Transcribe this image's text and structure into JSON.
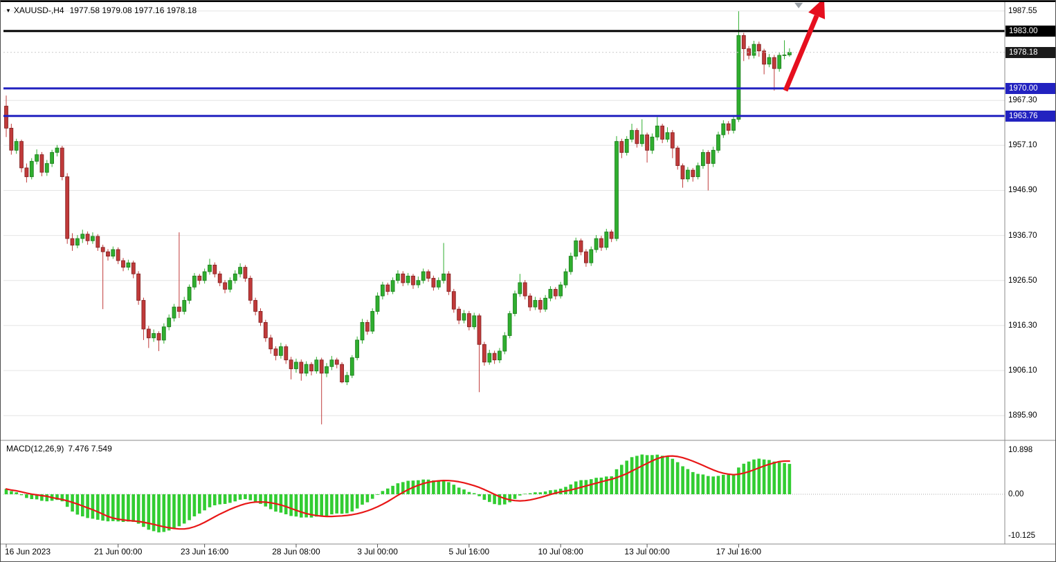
{
  "header": {
    "symbol": "XAUUSD-,H4",
    "ohlc_text": "1977.58 1979.08 1977.16 1978.18",
    "open": "1977.58",
    "high": "1979.08",
    "low": "1977.16",
    "close": "1978.18"
  },
  "chart_data": [
    {
      "id": "price",
      "type": "candlestick",
      "symbol": "XAUUSD-",
      "timeframe": "H4",
      "up_color": "#2fae2f",
      "down_color": "#c03a3a",
      "grid": true,
      "y_axis": {
        "range": [
          1890.6,
          1989.25
        ],
        "ticks": [
          {
            "value": 1987.55,
            "label": "1987.55"
          },
          {
            "value": 1967.3,
            "label": "1967.30"
          },
          {
            "value": 1957.1,
            "label": "1957.10"
          },
          {
            "value": 1946.9,
            "label": "1946.90"
          },
          {
            "value": 1936.7,
            "label": "1936.70"
          },
          {
            "value": 1926.5,
            "label": "1926.50"
          },
          {
            "value": 1916.3,
            "label": "1916.30"
          },
          {
            "value": 1906.1,
            "label": "1906.10"
          },
          {
            "value": 1895.9,
            "label": "1895.90"
          }
        ]
      },
      "x_labels": [
        {
          "label": "16 Jun 2023",
          "index": 0
        },
        {
          "label": "21 Jun 00:00",
          "index": 22
        },
        {
          "label": "23 Jun 16:00",
          "index": 39
        },
        {
          "label": "28 Jun 08:00",
          "index": 57
        },
        {
          "label": "3 Jul 00:00",
          "index": 73
        },
        {
          "label": "5 Jul 16:00",
          "index": 91
        },
        {
          "label": "10 Jul 08:00",
          "index": 109
        },
        {
          "label": "13 Jul 00:00",
          "index": 126
        },
        {
          "label": "17 Jul 16:00",
          "index": 144
        }
      ],
      "price_lines": [
        {
          "value": 1983.0,
          "label": "1983.00",
          "color": "#000000",
          "width": 3
        },
        {
          "value": 1970.0,
          "label": "1970.00",
          "color": "#2222c0",
          "width": 3
        },
        {
          "value": 1963.76,
          "label": "1963.76",
          "color": "#2222c0",
          "width": 3
        }
      ],
      "current_price": {
        "value": 1978.18,
        "label": "1978.18",
        "badge_color": "#1b1b1b"
      },
      "shift_marker": {
        "index": 155.8
      },
      "annotations": [
        {
          "type": "arrow",
          "color": "#e60f1e",
          "from": {
            "index": 153.2,
            "price": 1969.5
          },
          "to": {
            "index": 160.8,
            "price": 1990.5
          }
        }
      ],
      "candles": [
        [
          1966.0,
          1968.4,
          1959.0,
          1961.0
        ],
        [
          1961.0,
          1962.0,
          1955.0,
          1956.0
        ],
        [
          1956.0,
          1958.6,
          1955.2,
          1958.0
        ],
        [
          1958.0,
          1958.4,
          1951.0,
          1952.0
        ],
        [
          1952.0,
          1953.0,
          1948.7,
          1950.0
        ],
        [
          1950.0,
          1954.2,
          1949.4,
          1953.5
        ],
        [
          1953.5,
          1956.2,
          1952.8,
          1955.0
        ],
        [
          1955.0,
          1955.6,
          1950.1,
          1951.0
        ],
        [
          1951.0,
          1953.8,
          1950.2,
          1953.0
        ],
        [
          1953.0,
          1956.1,
          1952.2,
          1955.5
        ],
        [
          1955.5,
          1957.2,
          1954.6,
          1956.5
        ],
        [
          1956.5,
          1957.0,
          1949.2,
          1950.0
        ],
        [
          1950.0,
          1950.8,
          1934.8,
          1936.0
        ],
        [
          1936.0,
          1937.2,
          1933.2,
          1934.5
        ],
        [
          1934.5,
          1936.8,
          1933.8,
          1936.0
        ],
        [
          1936.0,
          1938.0,
          1935.0,
          1937.0
        ],
        [
          1937.0,
          1937.6,
          1934.6,
          1935.5
        ],
        [
          1935.5,
          1937.4,
          1934.8,
          1936.5
        ],
        [
          1936.5,
          1937.0,
          1933.2,
          1934.0
        ],
        [
          1934.0,
          1934.6,
          1920.0,
          1933.0
        ],
        [
          1933.0,
          1933.6,
          1931.0,
          1932.0
        ],
        [
          1932.0,
          1934.2,
          1931.4,
          1933.5
        ],
        [
          1933.5,
          1934.0,
          1930.2,
          1931.0
        ],
        [
          1931.0,
          1931.6,
          1928.6,
          1929.5
        ],
        [
          1929.5,
          1931.2,
          1928.8,
          1930.5
        ],
        [
          1930.5,
          1931.0,
          1927.0,
          1928.0
        ],
        [
          1928.0,
          1928.6,
          1921.0,
          1922.0
        ],
        [
          1922.0,
          1922.6,
          1913.0,
          1915.5
        ],
        [
          1915.5,
          1916.2,
          1911.2,
          1913.5
        ],
        [
          1913.5,
          1915.4,
          1912.6,
          1914.5
        ],
        [
          1914.5,
          1915.0,
          1910.5,
          1913.0
        ],
        [
          1913.0,
          1916.8,
          1912.2,
          1916.0
        ],
        [
          1916.0,
          1918.8,
          1915.2,
          1918.0
        ],
        [
          1918.0,
          1921.2,
          1917.2,
          1920.5
        ],
        [
          1920.5,
          1937.4,
          1918.0,
          1919.5
        ],
        [
          1919.5,
          1922.8,
          1918.8,
          1922.0
        ],
        [
          1922.0,
          1925.6,
          1921.2,
          1925.0
        ],
        [
          1925.0,
          1928.2,
          1924.4,
          1927.5
        ],
        [
          1927.5,
          1928.0,
          1925.6,
          1926.5
        ],
        [
          1926.5,
          1929.2,
          1925.8,
          1928.5
        ],
        [
          1928.5,
          1931.4,
          1927.8,
          1930.0
        ],
        [
          1930.0,
          1930.6,
          1927.2,
          1928.0
        ],
        [
          1928.0,
          1928.6,
          1925.2,
          1926.0
        ],
        [
          1926.0,
          1926.6,
          1923.6,
          1924.5
        ],
        [
          1924.5,
          1927.2,
          1923.8,
          1926.5
        ],
        [
          1926.5,
          1928.8,
          1925.8,
          1928.0
        ],
        [
          1928.0,
          1930.4,
          1927.2,
          1929.5
        ],
        [
          1929.5,
          1930.0,
          1926.2,
          1927.0
        ],
        [
          1927.0,
          1927.6,
          1921.2,
          1922.0
        ],
        [
          1922.0,
          1922.6,
          1918.6,
          1919.5
        ],
        [
          1919.5,
          1920.2,
          1916.2,
          1917.0
        ],
        [
          1917.0,
          1917.6,
          1912.6,
          1913.5
        ],
        [
          1913.5,
          1914.2,
          1909.9,
          1911.0
        ],
        [
          1911.0,
          1911.6,
          1908.4,
          1909.5
        ],
        [
          1909.5,
          1912.4,
          1908.8,
          1911.5
        ],
        [
          1911.5,
          1912.0,
          1907.6,
          1908.5
        ],
        [
          1908.5,
          1909.2,
          1904.1,
          1906.5
        ],
        [
          1906.5,
          1908.8,
          1905.6,
          1908.0
        ],
        [
          1908.0,
          1908.6,
          1903.8,
          1905.5
        ],
        [
          1905.5,
          1908.2,
          1904.8,
          1907.5
        ],
        [
          1907.5,
          1908.0,
          1905.0,
          1906.0
        ],
        [
          1906.0,
          1909.2,
          1905.4,
          1908.5
        ],
        [
          1908.5,
          1909.0,
          1893.9,
          1905.5
        ],
        [
          1905.5,
          1907.8,
          1904.6,
          1907.0
        ],
        [
          1907.0,
          1909.4,
          1906.2,
          1908.5
        ],
        [
          1908.5,
          1909.0,
          1906.6,
          1907.5
        ],
        [
          1907.5,
          1908.0,
          1903.2,
          1903.5
        ],
        [
          1903.5,
          1905.8,
          1902.8,
          1905.0
        ],
        [
          1905.0,
          1909.6,
          1904.4,
          1909.0
        ],
        [
          1909.0,
          1913.8,
          1908.4,
          1913.0
        ],
        [
          1913.0,
          1917.8,
          1912.2,
          1917.0
        ],
        [
          1917.0,
          1917.6,
          1914.2,
          1915.0
        ],
        [
          1915.0,
          1920.2,
          1914.4,
          1919.5
        ],
        [
          1919.5,
          1923.8,
          1918.8,
          1923.0
        ],
        [
          1923.0,
          1926.2,
          1922.2,
          1925.5
        ],
        [
          1925.5,
          1926.0,
          1923.2,
          1924.0
        ],
        [
          1924.0,
          1927.2,
          1923.4,
          1926.5
        ],
        [
          1926.5,
          1928.8,
          1925.8,
          1928.0
        ],
        [
          1928.0,
          1928.6,
          1925.2,
          1926.0
        ],
        [
          1926.0,
          1928.2,
          1925.4,
          1927.5
        ],
        [
          1927.5,
          1928.0,
          1924.6,
          1925.5
        ],
        [
          1925.5,
          1927.4,
          1924.8,
          1926.5
        ],
        [
          1926.5,
          1929.2,
          1925.8,
          1928.5
        ],
        [
          1928.5,
          1929.0,
          1926.2,
          1927.0
        ],
        [
          1927.0,
          1927.6,
          1924.2,
          1925.0
        ],
        [
          1925.0,
          1927.2,
          1924.4,
          1926.5
        ],
        [
          1926.5,
          1935.0,
          1925.8,
          1928.0
        ],
        [
          1928.0,
          1928.6,
          1923.2,
          1924.0
        ],
        [
          1924.0,
          1924.6,
          1919.2,
          1920.0
        ],
        [
          1920.0,
          1920.6,
          1916.6,
          1917.5
        ],
        [
          1917.5,
          1919.8,
          1916.8,
          1919.0
        ],
        [
          1919.0,
          1919.6,
          1915.2,
          1916.0
        ],
        [
          1916.0,
          1919.2,
          1915.4,
          1918.5
        ],
        [
          1918.5,
          1919.0,
          1901.2,
          1912.0
        ],
        [
          1912.0,
          1912.6,
          1907.2,
          1908.0
        ],
        [
          1908.0,
          1910.8,
          1907.4,
          1910.0
        ],
        [
          1910.0,
          1910.6,
          1907.6,
          1908.5
        ],
        [
          1908.5,
          1911.2,
          1907.8,
          1910.5
        ],
        [
          1910.5,
          1914.8,
          1909.8,
          1914.0
        ],
        [
          1914.0,
          1919.6,
          1913.4,
          1919.0
        ],
        [
          1919.0,
          1924.2,
          1918.4,
          1923.5
        ],
        [
          1923.5,
          1928.0,
          1922.8,
          1926.0
        ],
        [
          1926.0,
          1926.6,
          1922.2,
          1923.0
        ],
        [
          1923.0,
          1923.6,
          1919.6,
          1920.5
        ],
        [
          1920.5,
          1922.8,
          1919.8,
          1922.0
        ],
        [
          1922.0,
          1922.6,
          1919.2,
          1920.0
        ],
        [
          1920.0,
          1923.2,
          1919.4,
          1922.5
        ],
        [
          1922.5,
          1925.2,
          1921.8,
          1924.5
        ],
        [
          1924.5,
          1925.0,
          1922.2,
          1923.0
        ],
        [
          1923.0,
          1926.2,
          1922.4,
          1925.5
        ],
        [
          1925.5,
          1929.2,
          1924.8,
          1928.5
        ],
        [
          1928.5,
          1932.8,
          1927.8,
          1932.0
        ],
        [
          1932.0,
          1936.2,
          1931.2,
          1935.5
        ],
        [
          1935.5,
          1936.0,
          1932.2,
          1933.0
        ],
        [
          1933.0,
          1933.6,
          1929.6,
          1930.5
        ],
        [
          1930.5,
          1934.2,
          1929.8,
          1933.5
        ],
        [
          1933.5,
          1936.8,
          1932.8,
          1936.0
        ],
        [
          1936.0,
          1936.6,
          1933.2,
          1934.0
        ],
        [
          1934.0,
          1938.2,
          1933.4,
          1937.5
        ],
        [
          1937.5,
          1938.0,
          1935.2,
          1936.0
        ],
        [
          1936.0,
          1959.2,
          1935.4,
          1958.0
        ],
        [
          1958.0,
          1958.6,
          1954.2,
          1955.5
        ],
        [
          1955.5,
          1959.2,
          1954.8,
          1958.5
        ],
        [
          1958.5,
          1962.0,
          1957.8,
          1960.5
        ],
        [
          1960.5,
          1961.0,
          1956.6,
          1957.5
        ],
        [
          1957.5,
          1963.0,
          1956.8,
          1959.5
        ],
        [
          1959.5,
          1960.0,
          1953.2,
          1956.0
        ],
        [
          1956.0,
          1959.8,
          1955.2,
          1959.0
        ],
        [
          1959.0,
          1963.5,
          1958.2,
          1961.5
        ],
        [
          1961.5,
          1962.0,
          1957.6,
          1958.5
        ],
        [
          1958.5,
          1961.2,
          1957.8,
          1960.0
        ],
        [
          1960.0,
          1960.6,
          1954.2,
          1956.5
        ],
        [
          1956.5,
          1957.0,
          1951.6,
          1952.5
        ],
        [
          1952.5,
          1953.0,
          1947.5,
          1949.5
        ],
        [
          1949.5,
          1952.2,
          1948.8,
          1951.5
        ],
        [
          1951.5,
          1952.0,
          1948.9,
          1950.0
        ],
        [
          1950.0,
          1953.2,
          1949.4,
          1952.5
        ],
        [
          1952.5,
          1956.2,
          1951.8,
          1955.5
        ],
        [
          1955.5,
          1956.0,
          1946.9,
          1953.0
        ],
        [
          1953.0,
          1956.8,
          1952.2,
          1956.0
        ],
        [
          1956.0,
          1960.2,
          1955.4,
          1959.5
        ],
        [
          1959.5,
          1962.8,
          1958.8,
          1962.0
        ],
        [
          1962.0,
          1962.6,
          1959.6,
          1960.5
        ],
        [
          1960.5,
          1963.8,
          1959.8,
          1963.0
        ],
        [
          1963.0,
          1987.5,
          1962.4,
          1982.0
        ],
        [
          1982.0,
          1982.6,
          1976.2,
          1979.0
        ],
        [
          1979.0,
          1979.6,
          1976.6,
          1977.5
        ],
        [
          1977.5,
          1980.8,
          1976.8,
          1980.0
        ],
        [
          1980.0,
          1980.6,
          1977.2,
          1978.5
        ],
        [
          1978.5,
          1979.0,
          1973.2,
          1975.5
        ],
        [
          1975.5,
          1977.8,
          1974.8,
          1977.0
        ],
        [
          1977.0,
          1977.6,
          1969.5,
          1974.5
        ],
        [
          1974.5,
          1978.2,
          1973.8,
          1977.5
        ],
        [
          1977.5,
          1980.9,
          1976.6,
          1977.6
        ],
        [
          1977.58,
          1979.08,
          1977.16,
          1978.18
        ]
      ]
    },
    {
      "id": "macd",
      "type": "bar",
      "label": "MACD(12,26,9)",
      "values_text": "7.476 7.549",
      "main_value": 7.476,
      "signal_value": 7.549,
      "params": [
        12,
        26,
        9
      ],
      "histogram_color": "#32cd32",
      "signal_color": "#e81717",
      "derived": "histogram = EMA12(close) - EMA26(close); signal = SMA9(histogram)",
      "y_ticks": [
        {
          "value": 10.898,
          "label": "10.898"
        },
        {
          "value": 0,
          "label": "0.00"
        },
        {
          "value": -10.125,
          "label": "-10.125"
        }
      ]
    }
  ]
}
